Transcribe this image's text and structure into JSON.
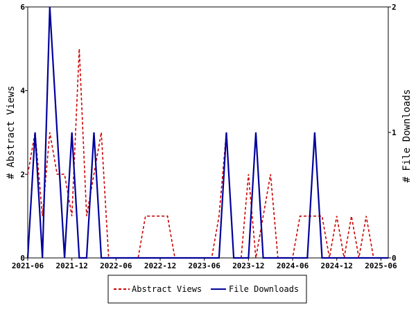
{
  "chart_data": {
    "type": "line",
    "title": "",
    "x_ticks": [
      "2021-06",
      "2021-12",
      "2022-06",
      "2022-12",
      "2023-06",
      "2023-12",
      "2024-06",
      "2024-12",
      "2025-06"
    ],
    "x_start": "2021-06",
    "x_end": "2025-07",
    "ylabel_left": "# Abstract Views",
    "ylabel_right": "# File Downloads",
    "ylim_left": [
      0,
      6
    ],
    "ylim_right": [
      0,
      2
    ],
    "yticks_left": [
      "0",
      "2",
      "4",
      "6"
    ],
    "yticks_right": [
      "0",
      "1",
      "2"
    ],
    "legend_position": "bottom",
    "series": [
      {
        "name": "Abstract Views",
        "axis": "left",
        "color": "#cc0000",
        "style": "dashed",
        "x": [
          "2021-06",
          "2021-07",
          "2021-08",
          "2021-09",
          "2021-10",
          "2021-11",
          "2021-12",
          "2022-01",
          "2022-02",
          "2022-03",
          "2022-04",
          "2022-05",
          "2022-06",
          "2022-07",
          "2022-08",
          "2022-09",
          "2022-10",
          "2022-11",
          "2022-12",
          "2023-01",
          "2023-02",
          "2023-03",
          "2023-04",
          "2023-05",
          "2023-06",
          "2023-07",
          "2023-08",
          "2023-09",
          "2023-10",
          "2023-11",
          "2023-12",
          "2024-01",
          "2024-02",
          "2024-03",
          "2024-04",
          "2024-05",
          "2024-06",
          "2024-07",
          "2024-08",
          "2024-09",
          "2024-10",
          "2024-11",
          "2024-12",
          "2025-01",
          "2025-02",
          "2025-03",
          "2025-04",
          "2025-05",
          "2025-06",
          "2025-07"
        ],
        "values": [
          2,
          3,
          1,
          3,
          2,
          2,
          1,
          5,
          1,
          2,
          3,
          0,
          0,
          0,
          0,
          0,
          1,
          1,
          1,
          1,
          0,
          0,
          0,
          0,
          0,
          0,
          1,
          3,
          0,
          0,
          2,
          0,
          1,
          2,
          0,
          0,
          0,
          1,
          1,
          1,
          1,
          0,
          1,
          0,
          1,
          0,
          1,
          0,
          0,
          0
        ]
      },
      {
        "name": "File Downloads",
        "axis": "right",
        "color": "#00009c",
        "style": "solid",
        "x": [
          "2021-06",
          "2021-07",
          "2021-08",
          "2021-09",
          "2021-10",
          "2021-11",
          "2021-12",
          "2022-01",
          "2022-02",
          "2022-03",
          "2022-04",
          "2022-05",
          "2022-06",
          "2022-07",
          "2022-08",
          "2022-09",
          "2022-10",
          "2022-11",
          "2022-12",
          "2023-01",
          "2023-02",
          "2023-03",
          "2023-04",
          "2023-05",
          "2023-06",
          "2023-07",
          "2023-08",
          "2023-09",
          "2023-10",
          "2023-11",
          "2023-12",
          "2024-01",
          "2024-02",
          "2024-03",
          "2024-04",
          "2024-05",
          "2024-06",
          "2024-07",
          "2024-08",
          "2024-09",
          "2024-10",
          "2024-11",
          "2024-12",
          "2025-01",
          "2025-02",
          "2025-03",
          "2025-04",
          "2025-05",
          "2025-06",
          "2025-07"
        ],
        "values": [
          0,
          1,
          0,
          2,
          1,
          0,
          1,
          0,
          0,
          1,
          0,
          0,
          0,
          0,
          0,
          0,
          0,
          0,
          0,
          0,
          0,
          0,
          0,
          0,
          0,
          0,
          0,
          1,
          0,
          0,
          0,
          1,
          0,
          0,
          0,
          0,
          0,
          0,
          0,
          1,
          0,
          0,
          0,
          0,
          0,
          0,
          0,
          0,
          0,
          0
        ]
      }
    ]
  }
}
